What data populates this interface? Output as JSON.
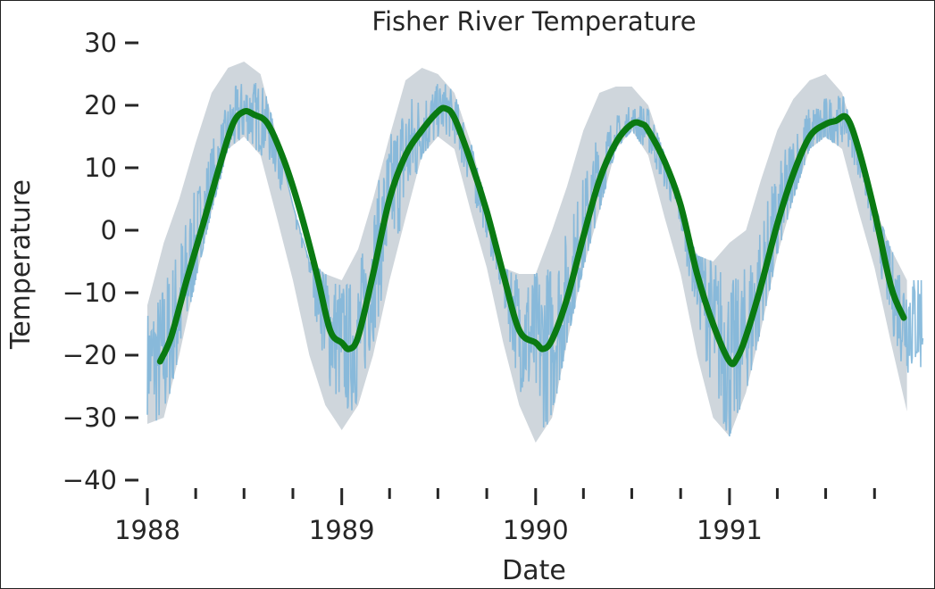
{
  "chart_data": {
    "type": "line",
    "title": "Fisher River Temperature",
    "xlabel": "Date",
    "ylabel": "Temperature",
    "xlim": [
      "1988-01-01",
      "1992-01-01"
    ],
    "ylim": [
      -40,
      30
    ],
    "y_ticks": [
      30,
      20,
      10,
      0,
      -10,
      -20,
      -30,
      -40
    ],
    "y_tick_labels": [
      "30",
      "20",
      "10",
      "0",
      "−10",
      "−20",
      "−30",
      "−40"
    ],
    "x_major_ticks": [
      "1988-01-01",
      "1989-01-01",
      "1990-01-01",
      "1991-01-01"
    ],
    "x_tick_labels": [
      "1988",
      "1989",
      "1990",
      "1991"
    ],
    "x_minor_tick_months": 3,
    "grid": false,
    "series": [
      {
        "role": "daily",
        "color": "#7fb6d9",
        "x": [
          "1988-01-01",
          "1988-02-01",
          "1988-03-01",
          "1988-04-01",
          "1988-05-01",
          "1988-06-01",
          "1988-07-01",
          "1988-08-01",
          "1988-09-01",
          "1988-10-01",
          "1988-11-01",
          "1988-12-01",
          "1989-01-01",
          "1989-02-01",
          "1989-03-01",
          "1989-04-01",
          "1989-05-01",
          "1989-06-01",
          "1989-07-01",
          "1989-08-01",
          "1989-09-01",
          "1989-10-01",
          "1989-11-01",
          "1989-12-01",
          "1990-01-01",
          "1990-02-01",
          "1990-03-01",
          "1990-04-01",
          "1990-05-01",
          "1990-06-01",
          "1990-07-01",
          "1990-08-01",
          "1990-09-01",
          "1990-10-01",
          "1990-11-01",
          "1990-12-01",
          "1991-01-01",
          "1991-02-01",
          "1991-03-01",
          "1991-04-01",
          "1991-05-01",
          "1991-06-01",
          "1991-07-01",
          "1991-08-01",
          "1991-09-01",
          "1991-10-01",
          "1991-11-01",
          "1991-12-01"
        ],
        "low": [
          -31,
          -30,
          -20,
          -8,
          3,
          13,
          15,
          12,
          2,
          -8,
          -20,
          -28,
          -32,
          -28,
          -20,
          -8,
          2,
          12,
          15,
          13,
          3,
          -6,
          -18,
          -28,
          -34,
          -30,
          -18,
          -6,
          3,
          13,
          16,
          12,
          2,
          -7,
          -20,
          -30,
          -33,
          -26,
          -16,
          -4,
          5,
          13,
          15,
          13,
          3,
          -6,
          -18,
          -29
        ],
        "high": [
          -12,
          -2,
          5,
          14,
          22,
          26,
          27,
          25,
          15,
          4,
          -5,
          -7,
          -8,
          -3,
          5,
          15,
          24,
          26,
          25,
          22,
          14,
          4,
          -6,
          -7,
          -7,
          0,
          7,
          16,
          22,
          23,
          23,
          20,
          12,
          3,
          -4,
          -5,
          -2,
          0,
          8,
          16,
          21,
          24,
          25,
          22,
          13,
          4,
          -3,
          -8
        ]
      },
      {
        "role": "rolling-mean",
        "color": "#0a7a12",
        "x": [
          "1988-01-25",
          "1988-02-15",
          "1988-03-15",
          "1988-04-15",
          "1988-05-15",
          "1988-06-10",
          "1988-07-01",
          "1988-07-20",
          "1988-08-15",
          "1988-09-15",
          "1988-10-15",
          "1988-11-15",
          "1988-12-10",
          "1989-01-01",
          "1989-01-15",
          "1989-02-01",
          "1989-03-01",
          "1989-04-01",
          "1989-05-01",
          "1989-06-01",
          "1989-07-01",
          "1989-07-15",
          "1989-08-01",
          "1989-09-01",
          "1989-10-01",
          "1989-11-01",
          "1989-12-01",
          "1990-01-01",
          "1990-01-15",
          "1990-02-01",
          "1990-03-01",
          "1990-04-01",
          "1990-05-01",
          "1990-06-01",
          "1990-07-01",
          "1990-07-20",
          "1990-08-01",
          "1990-09-01",
          "1990-10-01",
          "1990-11-01",
          "1990-12-01",
          "1991-01-01",
          "1991-01-15",
          "1991-02-01",
          "1991-03-01",
          "1991-04-01",
          "1991-05-01",
          "1991-06-01",
          "1991-07-01",
          "1991-07-20",
          "1991-08-10",
          "1991-09-01",
          "1991-10-01",
          "1991-11-01",
          "1991-11-25"
        ],
        "values": [
          -21,
          -17,
          -8,
          1,
          10,
          17,
          19,
          18.5,
          17,
          11,
          3,
          -7,
          -16,
          -18,
          -19,
          -17,
          -7,
          5,
          12,
          16,
          19,
          19.5,
          18,
          11,
          3,
          -7,
          -16,
          -18,
          -19,
          -17.5,
          -11,
          -1,
          8,
          14,
          17,
          17,
          16,
          11,
          4,
          -7,
          -15,
          -21,
          -20.5,
          -17,
          -9,
          1,
          9,
          15,
          17,
          17.5,
          18,
          13,
          3,
          -9,
          -14
        ]
      }
    ]
  }
}
